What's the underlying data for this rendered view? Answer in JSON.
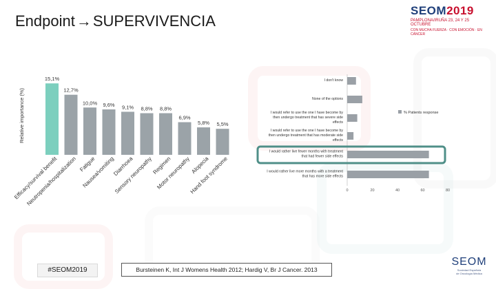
{
  "slide": {
    "title_left": "Endpoint",
    "title_right": "SUPERVIVENCIA",
    "hashtag": "#SEOM2019",
    "citation": "Bursteinen K, Int J Womens Health 2012; Hardig V, Br J Cancer. 2013",
    "logo_top": {
      "brand": "SEOM",
      "year": "2019",
      "line1": "PAMPLONA/IRUÑA 23, 24 Y 25 OCTUBRE",
      "line2": "CON MUCHA FUERZA · CON EMOCIÓN · EN CÁNCER"
    },
    "logo_bottom": {
      "brand": "SEOM",
      "tagline1": "Sociedad Española",
      "tagline2": "de Oncología Médica"
    }
  },
  "chart_data": [
    {
      "type": "bar",
      "ylabel": "Relative importance (%)",
      "categories": [
        "Efficacy/survival benefit",
        "Neutropenia/hospitalization",
        "Fatigue",
        "Nausea/vomiting",
        "Diarrhoea",
        "Sensory neuropathy",
        "Regimen",
        "Motor neuropathy",
        "Alopecia",
        "Hand foot syndrome"
      ],
      "values": [
        15.1,
        12.7,
        10.0,
        9.6,
        9.1,
        8.8,
        8.8,
        6.9,
        5.8,
        5.5
      ],
      "data_labels": [
        "15,1%",
        "12,7%",
        "10,0%",
        "9,6%",
        "9,1%",
        "8,8%",
        "8,8%",
        "6,9%",
        "5,8%",
        "5,5%"
      ],
      "colors": [
        "#7ccfbe",
        "#9ba3a8",
        "#9ba3a8",
        "#9ba3a8",
        "#9ba3a8",
        "#9ba3a8",
        "#9ba3a8",
        "#9ba3a8",
        "#9ba3a8",
        "#9ba3a8"
      ],
      "ylim": [
        0,
        16
      ]
    },
    {
      "type": "bar",
      "orientation": "horizontal",
      "categories": [
        "I don't know",
        "None of the options",
        "I would refer to use the one I have become by then undergo treatment that has severe side effects",
        "I would refer to use the one I have become by then undergo treatment that has moderate side effects",
        "I would rather live fewer months with treatment that had fewer side effects",
        "I would rather live more months with a treatment that has more side effects"
      ],
      "values": [
        7,
        12,
        8,
        5,
        65,
        65
      ],
      "legend": [
        "% Patients response"
      ],
      "legend_position": "top-right",
      "highlight_index": 4,
      "xticks": [
        0,
        20,
        40,
        60,
        80
      ],
      "xlim": [
        0,
        80
      ],
      "highlight_color": "#4f8f88",
      "bar_color": "#9aa0a6"
    }
  ]
}
